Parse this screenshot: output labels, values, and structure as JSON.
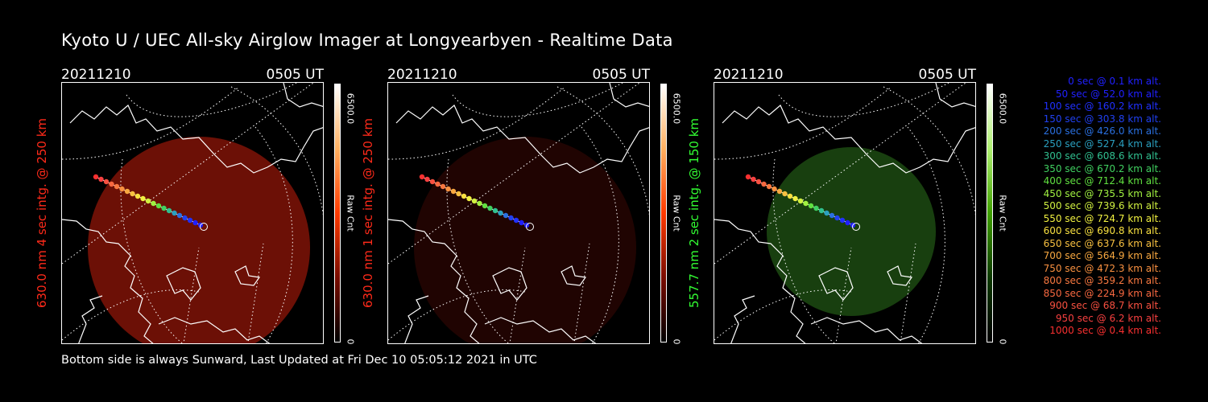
{
  "title": "Kyoto U / UEC All-sky Airglow Imager at Longyearbyen - Realtime Data",
  "footer": "Bottom side is always Sunward, Last Updated at Fri Dec 10 05:05:12 2021 in UTC",
  "panels": [
    {
      "date": "20211210",
      "time": "0505 UT",
      "label": "630.0 nm 4 sec intg. @ 250 km",
      "label_color": "#ff2a1a",
      "cbar_max": "6500.0",
      "cbar_unit": "Raw Cnt",
      "cbar_min": "0",
      "disk_color": "#8a1408",
      "disk_opacity": 0.78,
      "cbar_colors": [
        "#000000",
        "#7a0c00",
        "#ff3a00",
        "#ffb060",
        "#ffffff"
      ]
    },
    {
      "date": "20211210",
      "time": "0505 UT",
      "label": "630.0 nm 1 sec intg. @ 250 km",
      "label_color": "#ff2a1a",
      "cbar_max": "6500.0",
      "cbar_unit": "Raw Cnt",
      "cbar_min": "0",
      "disk_color": "#3a0804",
      "disk_opacity": 0.55,
      "cbar_colors": [
        "#000000",
        "#7a0c00",
        "#ff3a00",
        "#ffb060",
        "#ffffff"
      ]
    },
    {
      "date": "20211210",
      "time": "0505 UT",
      "label": "557.7 nm 2 sec intg. @ 150 km",
      "label_color": "#33ff33",
      "cbar_max": "6500.0",
      "cbar_unit": "Raw Cnt",
      "cbar_min": "0",
      "disk_color": "#1c4a12",
      "disk_opacity": 0.85,
      "cbar_colors": [
        "#000000",
        "#0d3a00",
        "#3fa000",
        "#aef070",
        "#ffffff"
      ]
    }
  ],
  "legend": [
    {
      "text": "0 sec @   0.1 km alt.",
      "color": "#2020ff"
    },
    {
      "text": "50 sec @  52.0 km alt.",
      "color": "#2020ff"
    },
    {
      "text": "100 sec @ 160.2 km alt.",
      "color": "#2030ff"
    },
    {
      "text": "150 sec @ 303.8 km alt.",
      "color": "#2040f0"
    },
    {
      "text": "200 sec @ 426.0 km alt.",
      "color": "#2a70e0"
    },
    {
      "text": "250 sec @ 527.4 km alt.",
      "color": "#2aa0c0"
    },
    {
      "text": "300 sec @ 608.6 km alt.",
      "color": "#30c090"
    },
    {
      "text": "350 sec @ 670.2 km alt.",
      "color": "#40d060"
    },
    {
      "text": "400 sec @ 712.4 km alt.",
      "color": "#60e040"
    },
    {
      "text": "450 sec @ 735.5 km alt.",
      "color": "#a0f040"
    },
    {
      "text": "500 sec @ 739.6 km alt.",
      "color": "#d0f040"
    },
    {
      "text": "550 sec @ 724.7 km alt.",
      "color": "#f0f040"
    },
    {
      "text": "600 sec @ 690.8 km alt.",
      "color": "#f8e040"
    },
    {
      "text": "650 sec @ 637.6 km alt.",
      "color": "#f8c040"
    },
    {
      "text": "700 sec @ 564.9 km alt.",
      "color": "#f8a840"
    },
    {
      "text": "750 sec @ 472.3 km alt.",
      "color": "#f89040"
    },
    {
      "text": "800 sec @ 359.2 km alt.",
      "color": "#f87840"
    },
    {
      "text": "850 sec @ 224.9 km alt.",
      "color": "#f86840"
    },
    {
      "text": "900 sec @  68.7 km alt.",
      "color": "#f85040"
    },
    {
      "text": "950 sec @   6.2 km alt.",
      "color": "#f84040"
    },
    {
      "text": "1000 sec @   0.4 km alt.",
      "color": "#f83030"
    }
  ]
}
